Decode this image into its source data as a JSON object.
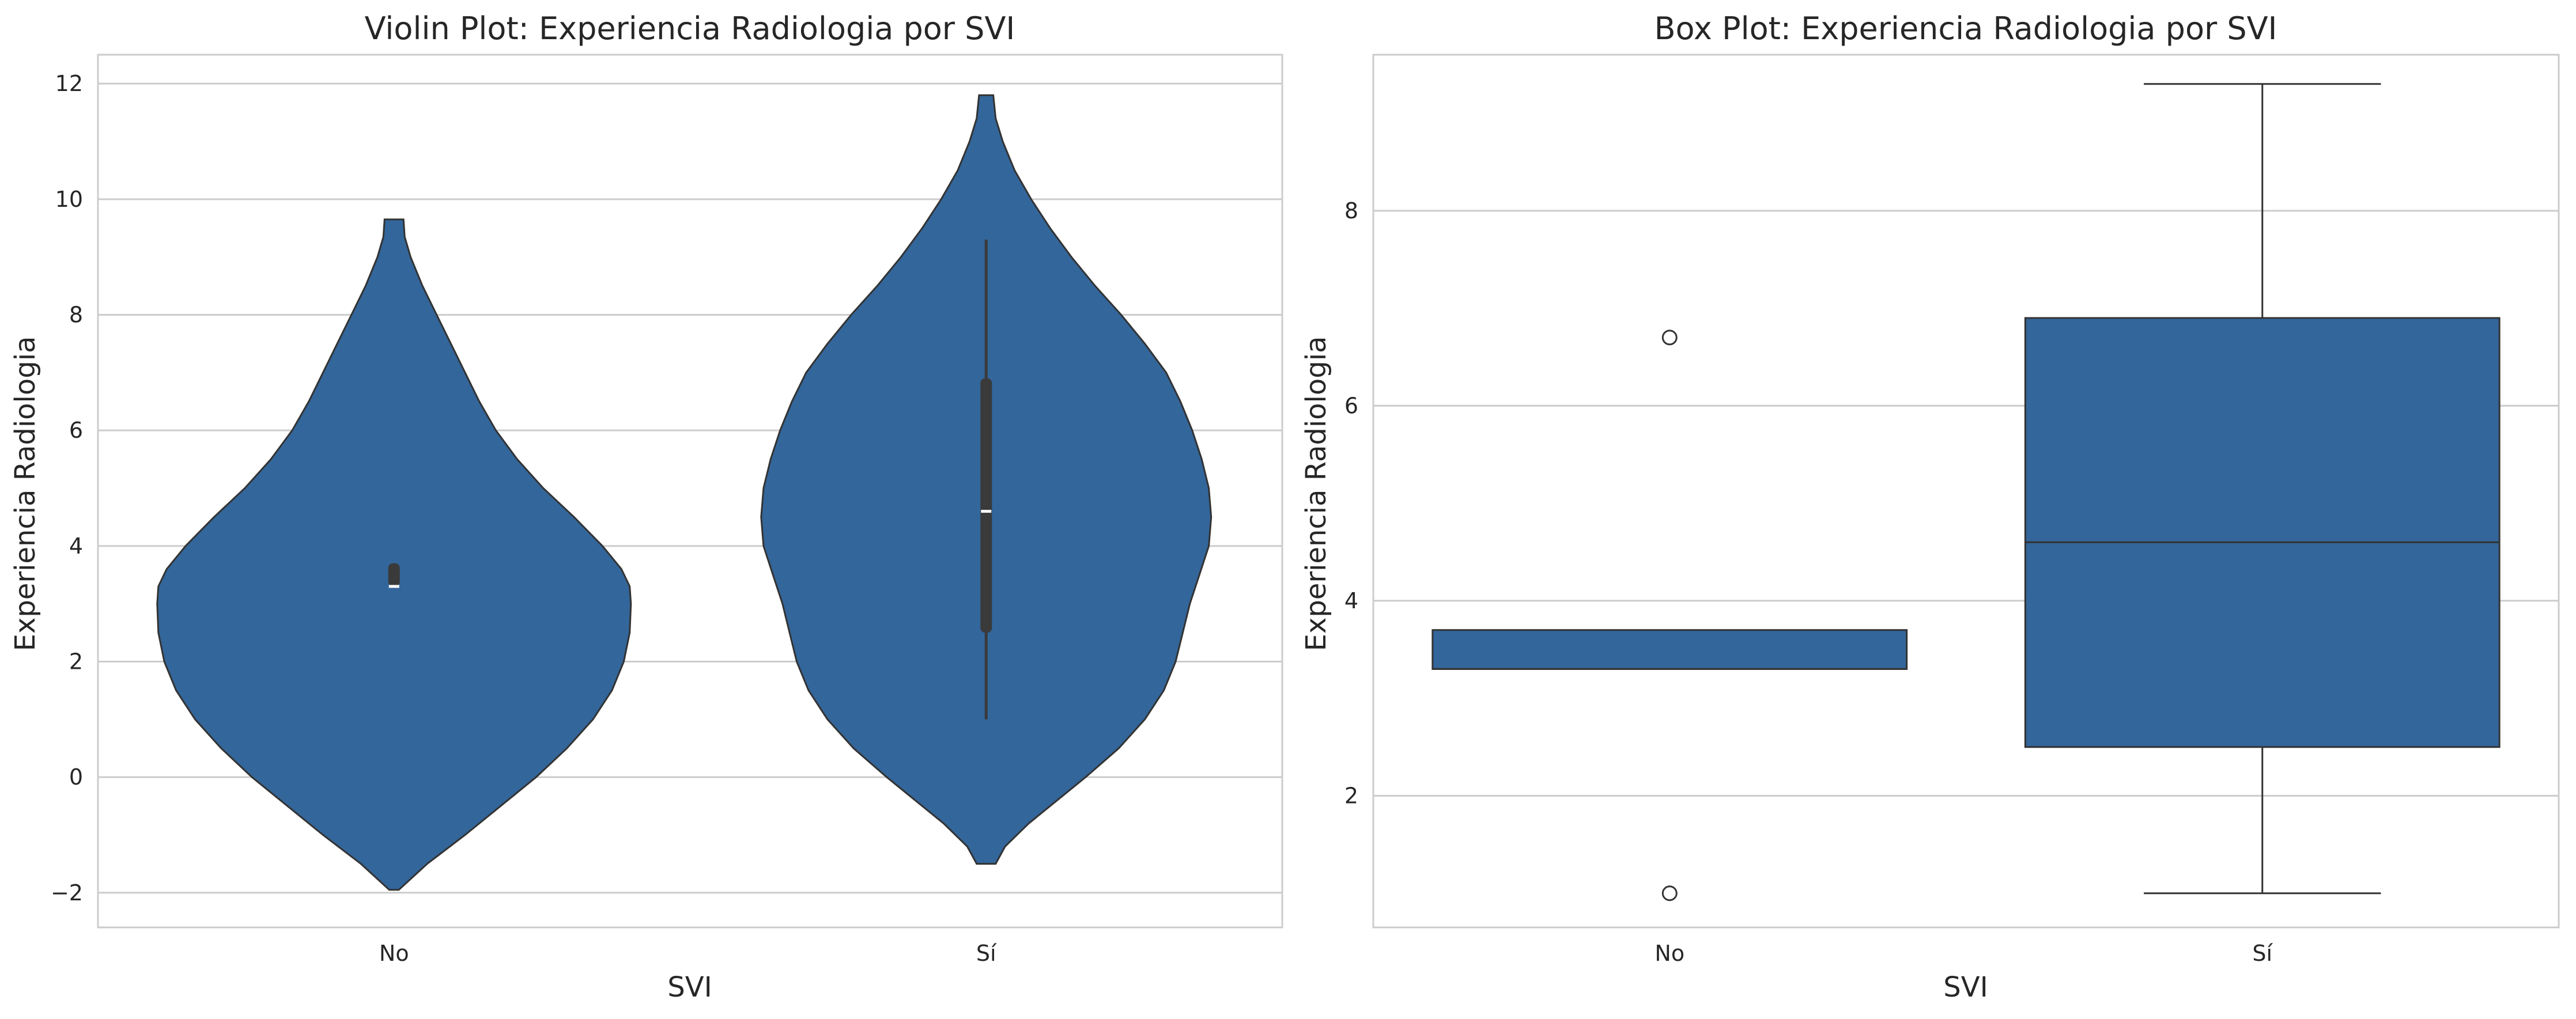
{
  "colors": {
    "fill": "#33669a",
    "edge": "#333333",
    "grid": "#cccccc",
    "text": "#262626"
  },
  "chart_data": [
    {
      "type": "violin",
      "title": "Violin Plot: Experiencia Radiologia por SVI",
      "xlabel": "SVI",
      "ylabel": "Experiencia Radiologia",
      "categories": [
        "No",
        "Sí"
      ],
      "ylim": [
        -2.6,
        12.5
      ],
      "yticks": [
        -2,
        0,
        2,
        4,
        6,
        8,
        10,
        12
      ],
      "ytick_labels": [
        "−2",
        "0",
        "2",
        "4",
        "6",
        "8",
        "10",
        "12"
      ],
      "grid": true,
      "violins": [
        {
          "category": "No",
          "extent": [
            -1.95,
            9.65
          ],
          "q1": 3.3,
          "median": 3.3,
          "q3": 3.7,
          "whisker_low": 3.3,
          "whisker_high": 3.7,
          "profile": [
            [
              -1.95,
              0.02
            ],
            [
              -1.5,
              0.14
            ],
            [
              -1.0,
              0.3
            ],
            [
              -0.5,
              0.45
            ],
            [
              0.0,
              0.6
            ],
            [
              0.5,
              0.73
            ],
            [
              1.0,
              0.84
            ],
            [
              1.5,
              0.92
            ],
            [
              2.0,
              0.97
            ],
            [
              2.5,
              0.995
            ],
            [
              3.0,
              1.0
            ],
            [
              3.3,
              0.995
            ],
            [
              3.6,
              0.96
            ],
            [
              4.0,
              0.88
            ],
            [
              4.5,
              0.76
            ],
            [
              5.0,
              0.63
            ],
            [
              5.5,
              0.52
            ],
            [
              6.0,
              0.43
            ],
            [
              6.5,
              0.36
            ],
            [
              7.0,
              0.3
            ],
            [
              7.5,
              0.24
            ],
            [
              8.0,
              0.18
            ],
            [
              8.5,
              0.12
            ],
            [
              9.0,
              0.07
            ],
            [
              9.35,
              0.045
            ],
            [
              9.65,
              0.04
            ]
          ]
        },
        {
          "category": "Sí",
          "extent": [
            -1.5,
            11.8
          ],
          "q1": 2.5,
          "median": 4.6,
          "q3": 6.9,
          "whisker_low": 1.0,
          "whisker_high": 9.3,
          "profile": [
            [
              -1.5,
              0.04
            ],
            [
              -1.2,
              0.08
            ],
            [
              -0.8,
              0.18
            ],
            [
              -0.4,
              0.3
            ],
            [
              0.0,
              0.42
            ],
            [
              0.5,
              0.56
            ],
            [
              1.0,
              0.67
            ],
            [
              1.5,
              0.75
            ],
            [
              2.0,
              0.8
            ],
            [
              2.5,
              0.83
            ],
            [
              3.0,
              0.86
            ],
            [
              3.5,
              0.9
            ],
            [
              4.0,
              0.94
            ],
            [
              4.5,
              0.95
            ],
            [
              5.0,
              0.94
            ],
            [
              5.5,
              0.91
            ],
            [
              6.0,
              0.87
            ],
            [
              6.5,
              0.82
            ],
            [
              7.0,
              0.76
            ],
            [
              7.5,
              0.67
            ],
            [
              8.0,
              0.57
            ],
            [
              8.5,
              0.46
            ],
            [
              9.0,
              0.36
            ],
            [
              9.5,
              0.27
            ],
            [
              10.0,
              0.19
            ],
            [
              10.5,
              0.12
            ],
            [
              11.0,
              0.07
            ],
            [
              11.4,
              0.04
            ],
            [
              11.8,
              0.03
            ]
          ]
        }
      ]
    },
    {
      "type": "box",
      "title": "Box Plot: Experiencia Radiologia por SVI",
      "xlabel": "SVI",
      "ylabel": "Experiencia Radiologia",
      "categories": [
        "No",
        "Sí"
      ],
      "ylim": [
        0.65,
        9.6
      ],
      "yticks": [
        2,
        4,
        6,
        8
      ],
      "ytick_labels": [
        "2",
        "4",
        "6",
        "8"
      ],
      "grid": true,
      "boxes": [
        {
          "category": "No",
          "q1": 3.3,
          "median": 3.3,
          "q3": 3.7,
          "whisker_low": 3.3,
          "whisker_high": 3.7,
          "outliers": [
            6.7,
            1.0
          ]
        },
        {
          "category": "Sí",
          "q1": 2.5,
          "median": 4.6,
          "q3": 6.9,
          "whisker_low": 1.0,
          "whisker_high": 9.3,
          "outliers": []
        }
      ]
    }
  ]
}
